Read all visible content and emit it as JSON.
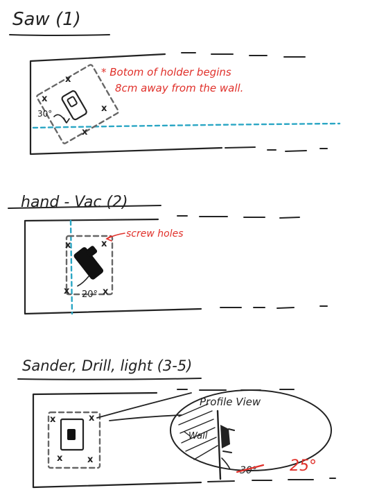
{
  "section1": {
    "title": "Saw (1)",
    "note_line1": "* Botom of holder begins",
    "note_line2": "8cm away from the wall.",
    "angle": "30°",
    "mark": "x"
  },
  "section2": {
    "title": "hand - Vac (2)",
    "callout": "screw holes",
    "angle": "20°",
    "mark": "x"
  },
  "section3": {
    "title": "Sander, Drill, light (3-5)",
    "profile_title": "Profile View",
    "wall_label": "Wall",
    "old_angle": "30°",
    "new_angle": "25°",
    "mark": "x"
  },
  "colors": {
    "ink": "#222222",
    "annotation_red": "#e0302a",
    "guide_blue": "#2aa6c4",
    "outline_gray": "#666666"
  }
}
